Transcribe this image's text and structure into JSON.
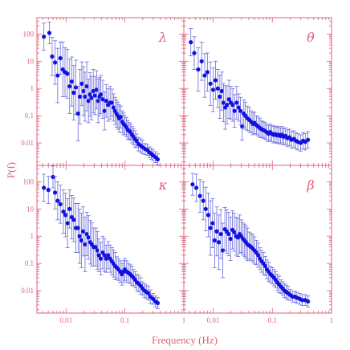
{
  "chart_data": {
    "type": "scatter",
    "xlabel": "Frequency (Hz)",
    "ylabel": "P(f)",
    "x_scale": "log",
    "y_scale": "log",
    "xlim": [
      0.0032,
      1
    ],
    "ylim": [
      0.0015,
      400
    ],
    "x_tick_labels": [
      "0.01",
      "0.1",
      "1"
    ],
    "y_tick_labels": [
      "0.01",
      "0.1",
      "1",
      "10",
      "100"
    ],
    "colors": {
      "frame": "#e0607a",
      "points": "#1010e0",
      "errorbars": "#6a6adc"
    },
    "panels": [
      {
        "label": "λ",
        "position": "top-left",
        "points": [
          [
            0.0042,
            80,
            0.5
          ],
          [
            0.0052,
            110,
            0.4
          ],
          [
            0.0058,
            15,
            0.7
          ],
          [
            0.0065,
            9,
            0.8
          ],
          [
            0.0072,
            3,
            1.0
          ],
          [
            0.008,
            13,
            0.6
          ],
          [
            0.0088,
            5,
            1.0
          ],
          [
            0.0096,
            4,
            0.9
          ],
          [
            0.0105,
            3.5,
            0.9
          ],
          [
            0.0115,
            1.2,
            1.0
          ],
          [
            0.0125,
            1.8,
            0.9
          ],
          [
            0.0135,
            0.7,
            1.0
          ],
          [
            0.0147,
            1.1,
            1.0
          ],
          [
            0.016,
            0.12,
            1.0
          ],
          [
            0.0172,
            0.5,
            1.0
          ],
          [
            0.0185,
            1.5,
            0.8
          ],
          [
            0.0198,
            0.8,
            0.9
          ],
          [
            0.021,
            0.5,
            0.9
          ],
          [
            0.0225,
            1.2,
            0.9
          ],
          [
            0.024,
            0.35,
            0.8
          ],
          [
            0.0255,
            0.6,
            0.8
          ],
          [
            0.027,
            0.45,
            0.8
          ],
          [
            0.029,
            0.8,
            0.8
          ],
          [
            0.031,
            0.55,
            0.7
          ],
          [
            0.033,
            0.9,
            0.7
          ],
          [
            0.035,
            0.35,
            0.8
          ],
          [
            0.037,
            0.5,
            0.7
          ],
          [
            0.039,
            0.6,
            0.7
          ],
          [
            0.042,
            0.4,
            0.7
          ],
          [
            0.045,
            0.15,
            0.7
          ],
          [
            0.048,
            0.35,
            0.6
          ],
          [
            0.052,
            0.25,
            0.6
          ],
          [
            0.056,
            0.3,
            0.6
          ],
          [
            0.06,
            0.3,
            0.5
          ],
          [
            0.064,
            0.2,
            0.5
          ],
          [
            0.068,
            0.15,
            0.5
          ],
          [
            0.072,
            0.12,
            0.5
          ],
          [
            0.076,
            0.1,
            0.5
          ],
          [
            0.08,
            0.08,
            0.5
          ],
          [
            0.085,
            0.09,
            0.4
          ],
          [
            0.09,
            0.06,
            0.4
          ],
          [
            0.095,
            0.05,
            0.4
          ],
          [
            0.1,
            0.045,
            0.35
          ],
          [
            0.106,
            0.038,
            0.35
          ],
          [
            0.112,
            0.03,
            0.35
          ],
          [
            0.118,
            0.028,
            0.3
          ],
          [
            0.125,
            0.025,
            0.3
          ],
          [
            0.132,
            0.02,
            0.3
          ],
          [
            0.14,
            0.017,
            0.3
          ],
          [
            0.148,
            0.014,
            0.3
          ],
          [
            0.158,
            0.012,
            0.25
          ],
          [
            0.17,
            0.009,
            0.25
          ],
          [
            0.185,
            0.008,
            0.25
          ],
          [
            0.2,
            0.007,
            0.25
          ],
          [
            0.22,
            0.006,
            0.2
          ],
          [
            0.24,
            0.0055,
            0.2
          ],
          [
            0.26,
            0.0045,
            0.2
          ],
          [
            0.28,
            0.004,
            0.2
          ],
          [
            0.3,
            0.0035,
            0.2
          ],
          [
            0.33,
            0.003,
            0.2
          ],
          [
            0.36,
            0.0025,
            0.2
          ]
        ]
      },
      {
        "label": "θ",
        "position": "top-right",
        "points": [
          [
            0.0042,
            50,
            0.5
          ],
          [
            0.0048,
            20,
            0.6
          ],
          [
            0.0056,
            5,
            0.8
          ],
          [
            0.0064,
            10,
            0.7
          ],
          [
            0.0072,
            3,
            0.8
          ],
          [
            0.008,
            4,
            0.7
          ],
          [
            0.009,
            1.5,
            0.8
          ],
          [
            0.01,
            0.9,
            0.8
          ],
          [
            0.011,
            2,
            0.7
          ],
          [
            0.012,
            1.0,
            0.7
          ],
          [
            0.013,
            0.5,
            0.8
          ],
          [
            0.014,
            0.8,
            0.7
          ],
          [
            0.015,
            0.3,
            0.7
          ],
          [
            0.016,
            0.2,
            0.8
          ],
          [
            0.0172,
            0.25,
            0.7
          ],
          [
            0.0185,
            0.4,
            0.7
          ],
          [
            0.02,
            0.3,
            0.6
          ],
          [
            0.0215,
            0.25,
            0.6
          ],
          [
            0.023,
            0.15,
            0.6
          ],
          [
            0.025,
            0.3,
            0.6
          ],
          [
            0.027,
            0.2,
            0.5
          ],
          [
            0.029,
            0.15,
            0.5
          ],
          [
            0.031,
            0.04,
            0.5
          ],
          [
            0.033,
            0.12,
            0.5
          ],
          [
            0.035,
            0.1,
            0.5
          ],
          [
            0.038,
            0.08,
            0.45
          ],
          [
            0.041,
            0.07,
            0.45
          ],
          [
            0.044,
            0.06,
            0.4
          ],
          [
            0.047,
            0.05,
            0.4
          ],
          [
            0.05,
            0.055,
            0.4
          ],
          [
            0.054,
            0.045,
            0.35
          ],
          [
            0.058,
            0.04,
            0.35
          ],
          [
            0.062,
            0.035,
            0.35
          ],
          [
            0.066,
            0.032,
            0.3
          ],
          [
            0.07,
            0.03,
            0.3
          ],
          [
            0.075,
            0.028,
            0.3
          ],
          [
            0.08,
            0.025,
            0.3
          ],
          [
            0.086,
            0.022,
            0.3
          ],
          [
            0.092,
            0.025,
            0.3
          ],
          [
            0.098,
            0.022,
            0.3
          ],
          [
            0.105,
            0.02,
            0.3
          ],
          [
            0.112,
            0.021,
            0.3
          ],
          [
            0.12,
            0.019,
            0.3
          ],
          [
            0.128,
            0.02,
            0.3
          ],
          [
            0.137,
            0.018,
            0.3
          ],
          [
            0.146,
            0.02,
            0.3
          ],
          [
            0.156,
            0.017,
            0.3
          ],
          [
            0.167,
            0.018,
            0.3
          ],
          [
            0.18,
            0.015,
            0.3
          ],
          [
            0.195,
            0.016,
            0.3
          ],
          [
            0.21,
            0.013,
            0.3
          ],
          [
            0.23,
            0.014,
            0.3
          ],
          [
            0.25,
            0.012,
            0.3
          ],
          [
            0.27,
            0.011,
            0.3
          ],
          [
            0.3,
            0.01,
            0.3
          ],
          [
            0.33,
            0.012,
            0.3
          ],
          [
            0.36,
            0.011,
            0.3
          ],
          [
            0.4,
            0.013,
            0.3
          ]
        ]
      },
      {
        "label": "κ",
        "position": "bottom-left",
        "points": [
          [
            0.0042,
            60,
            0.5
          ],
          [
            0.005,
            50,
            0.5
          ],
          [
            0.006,
            150,
            0.4
          ],
          [
            0.0065,
            40,
            0.6
          ],
          [
            0.0072,
            20,
            0.7
          ],
          [
            0.008,
            15,
            0.7
          ],
          [
            0.009,
            8,
            0.8
          ],
          [
            0.0098,
            6,
            0.8
          ],
          [
            0.0106,
            3,
            0.9
          ],
          [
            0.0115,
            10,
            0.7
          ],
          [
            0.0125,
            5,
            0.8
          ],
          [
            0.0135,
            4,
            0.8
          ],
          [
            0.0147,
            2,
            0.9
          ],
          [
            0.016,
            2,
            0.9
          ],
          [
            0.017,
            1.0,
            1.0
          ],
          [
            0.0182,
            0.7,
            1.0
          ],
          [
            0.0195,
            1.5,
            0.9
          ],
          [
            0.021,
            0.5,
            1.0
          ],
          [
            0.0225,
            1.2,
            0.8
          ],
          [
            0.024,
            0.9,
            0.8
          ],
          [
            0.0257,
            0.6,
            0.8
          ],
          [
            0.0275,
            0.5,
            0.8
          ],
          [
            0.0295,
            0.4,
            0.7
          ],
          [
            0.032,
            0.4,
            0.7
          ],
          [
            0.034,
            0.3,
            0.7
          ],
          [
            0.036,
            0.2,
            0.6
          ],
          [
            0.039,
            0.15,
            0.6
          ],
          [
            0.042,
            0.25,
            0.6
          ],
          [
            0.045,
            0.2,
            0.6
          ],
          [
            0.048,
            0.15,
            0.5
          ],
          [
            0.052,
            0.2,
            0.5
          ],
          [
            0.056,
            0.15,
            0.5
          ],
          [
            0.06,
            0.12,
            0.5
          ],
          [
            0.064,
            0.1,
            0.5
          ],
          [
            0.068,
            0.08,
            0.5
          ],
          [
            0.073,
            0.07,
            0.4
          ],
          [
            0.078,
            0.06,
            0.4
          ],
          [
            0.083,
            0.05,
            0.4
          ],
          [
            0.089,
            0.04,
            0.4
          ],
          [
            0.095,
            0.05,
            0.4
          ],
          [
            0.1,
            0.06,
            0.4
          ],
          [
            0.107,
            0.05,
            0.4
          ],
          [
            0.115,
            0.045,
            0.35
          ],
          [
            0.123,
            0.04,
            0.35
          ],
          [
            0.131,
            0.035,
            0.35
          ],
          [
            0.14,
            0.03,
            0.3
          ],
          [
            0.15,
            0.025,
            0.3
          ],
          [
            0.16,
            0.02,
            0.3
          ],
          [
            0.172,
            0.018,
            0.3
          ],
          [
            0.185,
            0.015,
            0.3
          ],
          [
            0.2,
            0.012,
            0.25
          ],
          [
            0.215,
            0.01,
            0.25
          ],
          [
            0.23,
            0.009,
            0.25
          ],
          [
            0.25,
            0.008,
            0.25
          ],
          [
            0.27,
            0.006,
            0.25
          ],
          [
            0.3,
            0.005,
            0.2
          ],
          [
            0.33,
            0.004,
            0.2
          ],
          [
            0.36,
            0.0035,
            0.2
          ]
        ]
      },
      {
        "label": "β",
        "position": "bottom-right",
        "points": [
          [
            0.0045,
            80,
            0.4
          ],
          [
            0.0052,
            60,
            0.5
          ],
          [
            0.006,
            30,
            0.6
          ],
          [
            0.0068,
            20,
            0.7
          ],
          [
            0.0075,
            10,
            0.8
          ],
          [
            0.0083,
            6,
            0.8
          ],
          [
            0.009,
            2,
            1.0
          ],
          [
            0.0098,
            3,
            0.9
          ],
          [
            0.0106,
            0.7,
            1.0
          ],
          [
            0.0115,
            1.5,
            0.9
          ],
          [
            0.0125,
            0.6,
            1.0
          ],
          [
            0.0135,
            1.2,
            0.9
          ],
          [
            0.0146,
            0.3,
            1.0
          ],
          [
            0.0158,
            1.8,
            0.8
          ],
          [
            0.017,
            1.5,
            0.8
          ],
          [
            0.0183,
            1.2,
            0.8
          ],
          [
            0.0197,
            0.8,
            0.8
          ],
          [
            0.0212,
            1.7,
            0.7
          ],
          [
            0.0228,
            1.4,
            0.7
          ],
          [
            0.0245,
            1.0,
            0.7
          ],
          [
            0.0263,
            0.9,
            0.7
          ],
          [
            0.0282,
            1.2,
            0.7
          ],
          [
            0.03,
            1.0,
            0.6
          ],
          [
            0.032,
            0.8,
            0.6
          ],
          [
            0.034,
            0.7,
            0.6
          ],
          [
            0.036,
            0.6,
            0.6
          ],
          [
            0.038,
            0.5,
            0.6
          ],
          [
            0.041,
            0.45,
            0.5
          ],
          [
            0.044,
            0.4,
            0.5
          ],
          [
            0.047,
            0.35,
            0.5
          ],
          [
            0.05,
            0.3,
            0.5
          ],
          [
            0.054,
            0.25,
            0.45
          ],
          [
            0.058,
            0.2,
            0.45
          ],
          [
            0.062,
            0.15,
            0.4
          ],
          [
            0.066,
            0.12,
            0.4
          ],
          [
            0.071,
            0.1,
            0.4
          ],
          [
            0.076,
            0.08,
            0.35
          ],
          [
            0.081,
            0.06,
            0.35
          ],
          [
            0.087,
            0.05,
            0.35
          ],
          [
            0.093,
            0.04,
            0.3
          ],
          [
            0.1,
            0.035,
            0.3
          ],
          [
            0.107,
            0.03,
            0.3
          ],
          [
            0.114,
            0.025,
            0.3
          ],
          [
            0.122,
            0.02,
            0.3
          ],
          [
            0.13,
            0.017,
            0.3
          ],
          [
            0.14,
            0.014,
            0.25
          ],
          [
            0.15,
            0.012,
            0.25
          ],
          [
            0.16,
            0.01,
            0.25
          ],
          [
            0.172,
            0.009,
            0.25
          ],
          [
            0.185,
            0.008,
            0.25
          ],
          [
            0.2,
            0.007,
            0.2
          ],
          [
            0.22,
            0.006,
            0.2
          ],
          [
            0.24,
            0.006,
            0.2
          ],
          [
            0.26,
            0.0055,
            0.2
          ],
          [
            0.29,
            0.005,
            0.2
          ],
          [
            0.32,
            0.0045,
            0.2
          ],
          [
            0.36,
            0.0045,
            0.2
          ],
          [
            0.4,
            0.004,
            0.2
          ]
        ]
      }
    ]
  }
}
